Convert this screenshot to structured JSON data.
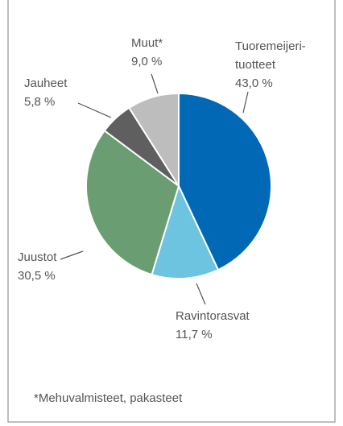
{
  "chart_data": {
    "type": "pie",
    "categories": [
      "Tuoremeijeri-tuotteet",
      "Ravintorasvat",
      "Juustot",
      "Jauheet",
      "Muut*"
    ],
    "values": [
      43.0,
      11.7,
      30.5,
      5.8,
      9.0
    ],
    "value_labels": [
      "43,0 %",
      "11,7 %",
      "30,5 %",
      "5,8 %",
      "9,0 %"
    ],
    "colors": [
      "#0068b4",
      "#6cc4e0",
      "#6a9e72",
      "#5f5f5f",
      "#bdbdbd"
    ],
    "footnote": "*Mehuvalmisteet, pakasteet"
  }
}
